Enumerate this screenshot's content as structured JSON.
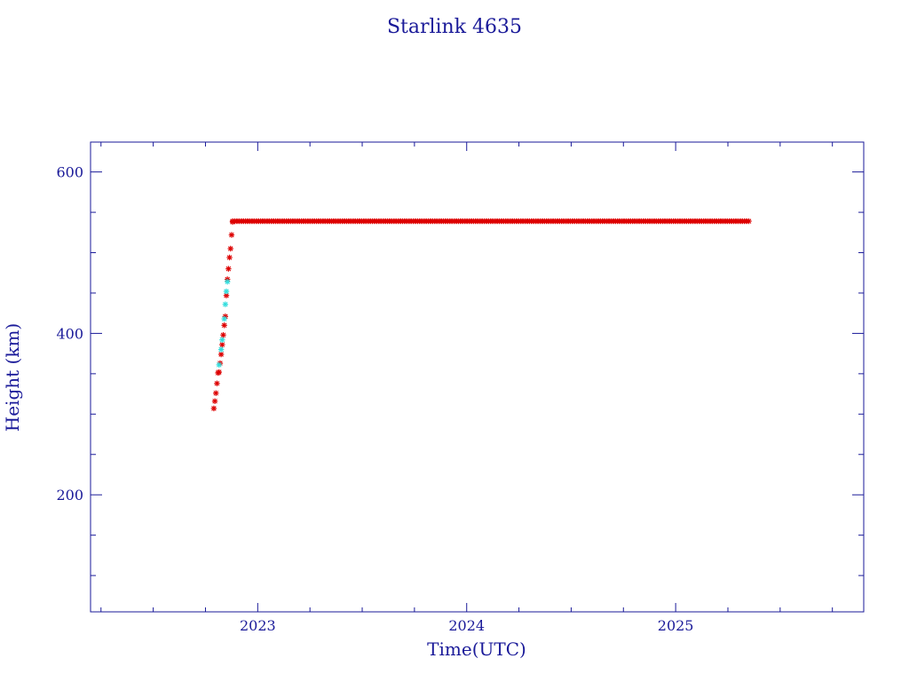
{
  "chart_data": {
    "type": "scatter",
    "title": "Starlink 4635",
    "xlabel": "Time(UTC)",
    "ylabel": "Height (km)",
    "xlim": [
      2022.2,
      2025.9
    ],
    "ylim": [
      55,
      637
    ],
    "x_ticks": [
      2023,
      2024,
      2025
    ],
    "x_tick_labels": [
      "2023",
      "2024",
      "2025"
    ],
    "y_ticks": [
      200,
      400,
      600
    ],
    "y_tick_labels": [
      "200",
      "400",
      "600"
    ],
    "grid": false,
    "colors": {
      "axes": "#1a1a99",
      "text": "#1a1a99",
      "points_primary": "#dd0000",
      "points_secondary": "#33dddd"
    },
    "series": [
      {
        "color": "#dd0000",
        "marker": "asterisk",
        "x": [
          2022.79,
          2022.795,
          2022.8,
          2022.805,
          2022.81,
          2022.815,
          2022.82,
          2022.825,
          2022.83,
          2022.835,
          2022.84,
          2022.845,
          2022.85,
          2022.855,
          2022.86,
          2022.865,
          2022.87,
          2022.875,
          2022.88
        ],
        "y": [
          307,
          316,
          326,
          338,
          351,
          352,
          363,
          374,
          386,
          398,
          410,
          421,
          447,
          467,
          480,
          494,
          505,
          522,
          538
        ]
      },
      {
        "color": "#dd0000",
        "marker": "asterisk",
        "x_start": 2022.88,
        "x_end": 2025.35,
        "y": 539,
        "x": [
          2022.88,
          2022.9,
          2022.95,
          2023.0,
          2023.05,
          2023.1,
          2023.15,
          2023.2,
          2023.25,
          2023.3,
          2023.35,
          2023.4,
          2023.45,
          2023.5,
          2023.55,
          2023.6,
          2023.65,
          2023.7,
          2023.75,
          2023.8,
          2023.85,
          2023.9,
          2023.95,
          2024.0,
          2024.05,
          2024.1,
          2024.15,
          2024.2,
          2024.25,
          2024.3,
          2024.35,
          2024.4,
          2024.45,
          2024.5,
          2024.55,
          2024.6,
          2024.65,
          2024.7,
          2024.75,
          2024.8,
          2024.85,
          2024.9,
          2024.95,
          2025.0,
          2025.05,
          2025.1,
          2025.15,
          2025.2,
          2025.25,
          2025.3,
          2025.35
        ]
      },
      {
        "color": "#33dddd",
        "marker": "asterisk",
        "x": [
          2022.815,
          2022.825,
          2022.83,
          2022.84,
          2022.845,
          2022.85,
          2022.855
        ],
        "y": [
          361,
          380,
          392,
          418,
          436,
          452,
          464
        ]
      }
    ]
  }
}
